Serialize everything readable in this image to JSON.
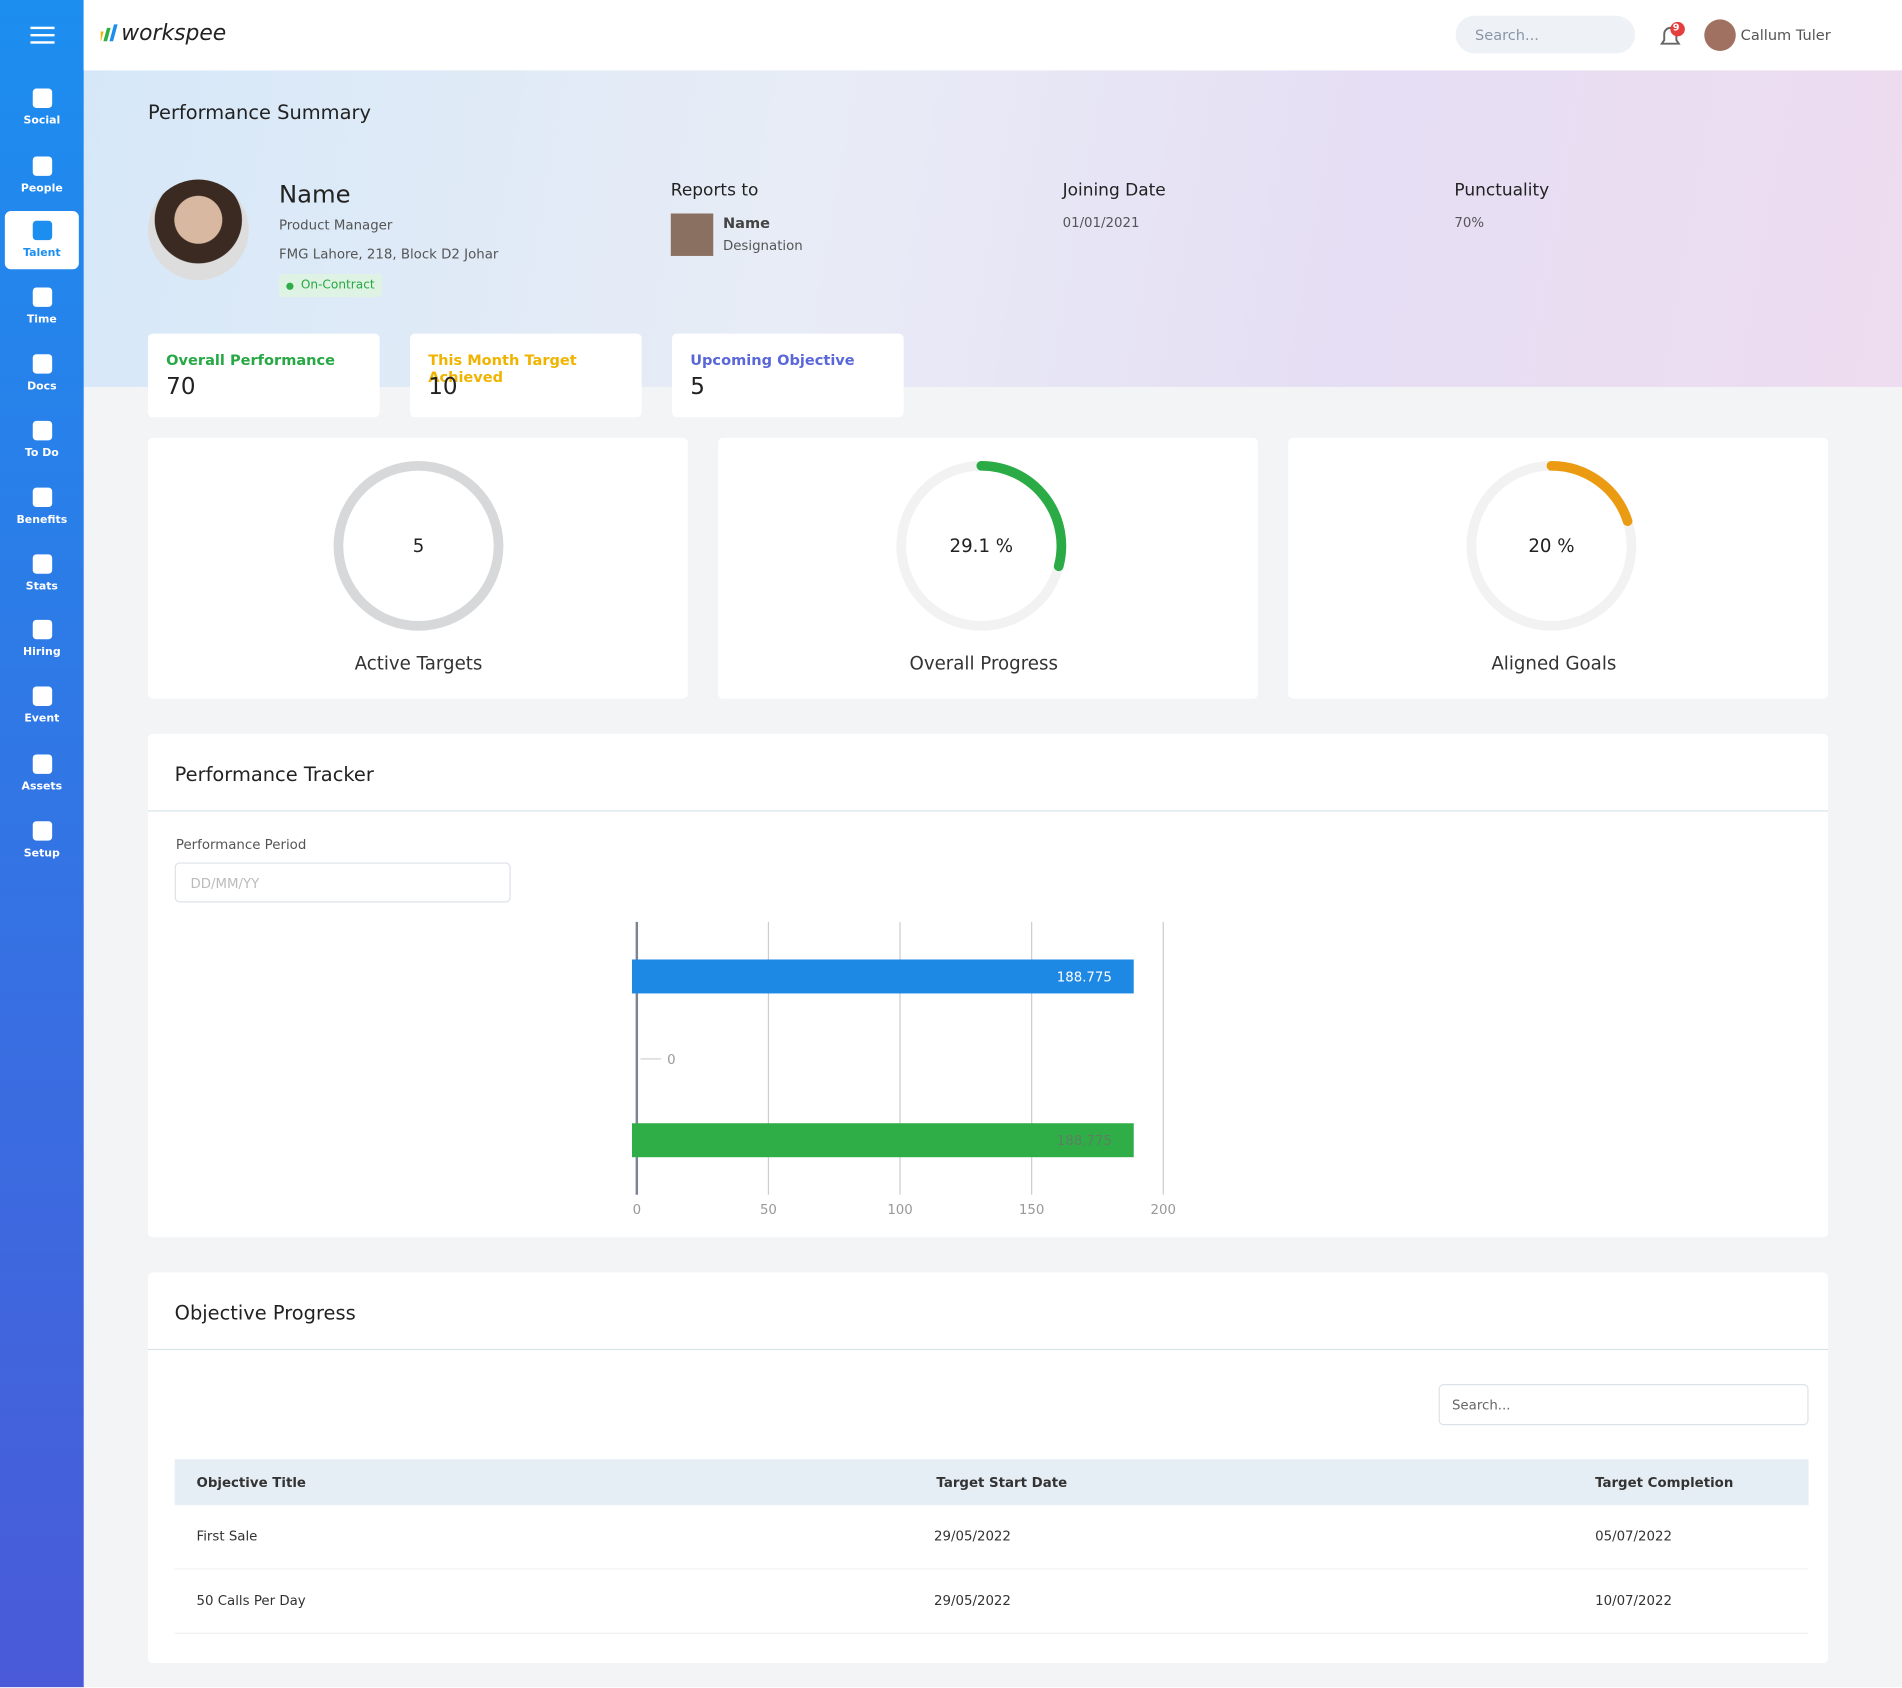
{
  "brand": "workspee",
  "sidebar": [
    "Social",
    "People",
    "Talent",
    "Time",
    "Docs",
    "To Do",
    "Benefits",
    "Stats",
    "Hiring",
    "Event",
    "Assets",
    "Setup"
  ],
  "header": {
    "search_placeholder": "Search...",
    "notifications": 9,
    "user": "Callum Tuler"
  },
  "summary": {
    "title": "Performance Summary",
    "name": "Name",
    "role": "Product Manager",
    "address": "FMG Lahore, 218, Block D2 Johar",
    "status": "On-Contract",
    "reports_to": {
      "label": "Reports to",
      "name": "Name",
      "designation": "Designation"
    },
    "joining": {
      "label": "Joining Date",
      "value": "01/01/2021"
    },
    "punctuality": {
      "label": "Punctuality",
      "value": "70%"
    }
  },
  "stat_cards": [
    {
      "label": "Overall Performance",
      "value": 70,
      "color": "#27a844"
    },
    {
      "label": "This Month Target Achieved",
      "value": 10,
      "color": "#f0b400"
    },
    {
      "label": "Upcoming Objective",
      "value": 5,
      "color": "#5a67d8"
    }
  ],
  "gauges": [
    {
      "label": "Active Targets",
      "value": 5
    },
    {
      "label": "Overall Progress",
      "value": 29.1,
      "value_label": "29.1 %",
      "arc_color": "#2bab45"
    },
    {
      "label": "Aligned Goals",
      "value": 20,
      "value_label": "20 %",
      "arc_color": "#eb9b12"
    }
  ],
  "tracker": {
    "title": "Performance Tracker",
    "period_label": "Performance Period",
    "period_placeholder": "DD/MM/YY",
    "chart_data": {
      "type": "bar",
      "orientation": "horizontal",
      "series": [
        {
          "color": "#1e88e5",
          "values": [
            188.775
          ]
        },
        {
          "color": "#2fae48",
          "values": [
            188.775
          ]
        }
      ],
      "yticks": [
        0
      ],
      "xlim": [
        0,
        200
      ],
      "xticks": [
        0,
        50,
        100,
        150,
        200
      ],
      "grid": true
    }
  },
  "objectives": {
    "title": "Objective Progress",
    "search_placeholder": "Search...",
    "columns": [
      "Objective Title",
      "Target Start Date",
      "Target Completion"
    ],
    "rows": [
      [
        "First Sale",
        "29/05/2022",
        "05/07/2022"
      ],
      [
        "50 Calls Per Day",
        "29/05/2022",
        "10/07/2022"
      ]
    ]
  }
}
